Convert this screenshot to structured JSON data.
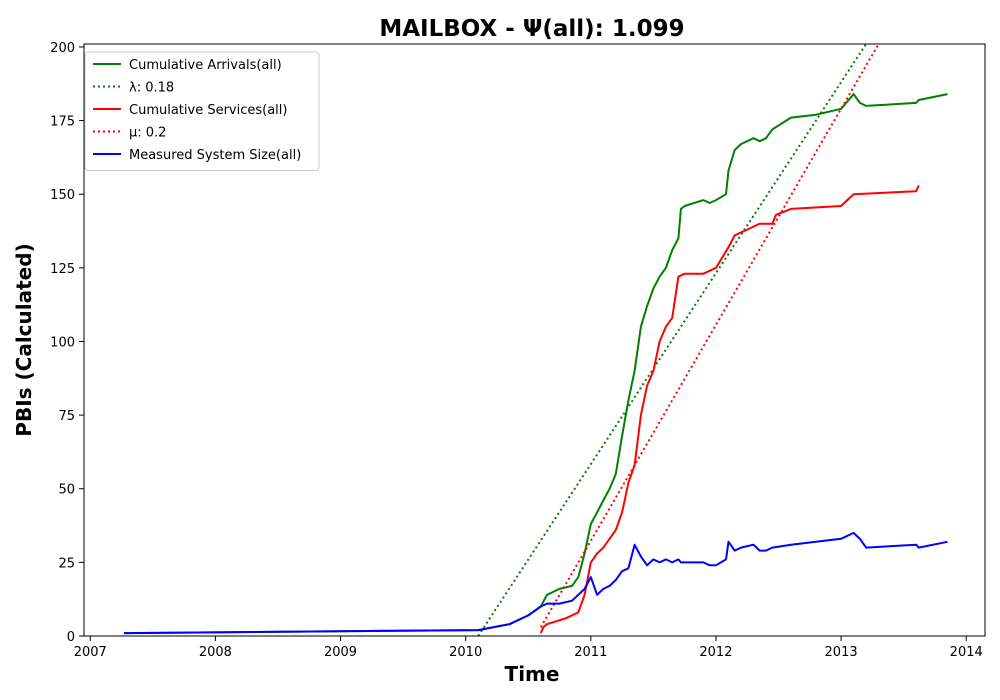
{
  "chart_data": {
    "type": "line",
    "title": "MAILBOX -  Ψ(all): 1.099",
    "xlabel": "Time",
    "ylabel": "PBIs (Calculated)",
    "xlim": [
      2006.95,
      2014.15
    ],
    "ylim": [
      0,
      201
    ],
    "x_ticks": [
      2007,
      2008,
      2009,
      2010,
      2011,
      2012,
      2013,
      2014
    ],
    "y_ticks": [
      0,
      25,
      50,
      75,
      100,
      125,
      150,
      175,
      200
    ],
    "legend_position": "upper-left",
    "series": [
      {
        "name": "Cumulative Arrivals(all)",
        "color": "#008000",
        "style": "solid",
        "x": [
          2007.27,
          2010.1,
          2010.35,
          2010.5,
          2010.6,
          2010.65,
          2010.75,
          2010.85,
          2010.9,
          2010.95,
          2011.0,
          2011.05,
          2011.1,
          2011.15,
          2011.2,
          2011.25,
          2011.3,
          2011.35,
          2011.4,
          2011.45,
          2011.5,
          2011.55,
          2011.6,
          2011.65,
          2011.7,
          2011.72,
          2011.75,
          2011.9,
          2011.95,
          2012.0,
          2012.08,
          2012.1,
          2012.15,
          2012.2,
          2012.3,
          2012.35,
          2012.4,
          2012.45,
          2012.6,
          2012.8,
          2013.0,
          2013.1,
          2013.15,
          2013.2,
          2013.6,
          2013.62,
          2013.85
        ],
        "y": [
          1,
          2,
          4,
          7,
          10,
          14,
          16,
          17,
          20,
          28,
          38,
          42,
          46,
          50,
          55,
          68,
          80,
          90,
          105,
          112,
          118,
          122,
          125,
          131,
          135,
          145,
          146,
          148,
          147,
          148,
          150,
          158,
          165,
          167,
          169,
          168,
          169,
          172,
          176,
          177,
          179,
          184,
          181,
          180,
          181,
          182,
          184
        ]
      },
      {
        "name": "λ: 0.18",
        "color": "#008000",
        "style": "dotted",
        "x": [
          2010.1,
          2013.2
        ],
        "y": [
          0,
          201
        ]
      },
      {
        "name": "Cumulative Services(all)",
        "color": "#ff0000",
        "style": "solid",
        "x": [
          2010.6,
          2010.62,
          2010.65,
          2010.8,
          2010.9,
          2010.95,
          2011.0,
          2011.05,
          2011.1,
          2011.15,
          2011.2,
          2011.25,
          2011.3,
          2011.35,
          2011.4,
          2011.45,
          2011.5,
          2011.55,
          2011.6,
          2011.65,
          2011.7,
          2011.75,
          2011.9,
          2012.0,
          2012.1,
          2012.15,
          2012.3,
          2012.35,
          2012.45,
          2012.48,
          2012.6,
          2013.0,
          2013.05,
          2013.1,
          2013.6,
          2013.62
        ],
        "y": [
          1,
          3,
          4,
          6,
          8,
          14,
          25,
          28,
          30,
          33,
          36,
          42,
          52,
          58,
          75,
          85,
          90,
          100,
          105,
          108,
          122,
          123,
          123,
          125,
          132,
          136,
          139,
          140,
          140,
          143,
          145,
          146,
          148,
          150,
          151,
          153
        ]
      },
      {
        "name": "μ: 0.2",
        "color": "#ff0000",
        "style": "dotted",
        "x": [
          2010.6,
          2013.3
        ],
        "y": [
          3,
          201
        ]
      },
      {
        "name": "Measured System Size(all)",
        "color": "#0000ff",
        "style": "solid",
        "x": [
          2007.27,
          2010.1,
          2010.35,
          2010.5,
          2010.6,
          2010.65,
          2010.75,
          2010.85,
          2010.9,
          2010.95,
          2011.0,
          2011.05,
          2011.1,
          2011.15,
          2011.2,
          2011.25,
          2011.3,
          2011.35,
          2011.4,
          2011.45,
          2011.5,
          2011.55,
          2011.6,
          2011.65,
          2011.7,
          2011.72,
          2011.75,
          2011.9,
          2011.95,
          2012.0,
          2012.08,
          2012.1,
          2012.15,
          2012.2,
          2012.3,
          2012.35,
          2012.4,
          2012.45,
          2012.6,
          2012.8,
          2013.0,
          2013.1,
          2013.15,
          2013.2,
          2013.6,
          2013.62,
          2013.85
        ],
        "y": [
          1,
          2,
          4,
          7,
          10,
          11,
          11,
          12,
          14,
          16,
          20,
          14,
          16,
          17,
          19,
          22,
          23,
          31,
          27,
          24,
          26,
          25,
          26,
          25,
          26,
          25,
          25,
          25,
          24,
          24,
          26,
          32,
          29,
          30,
          31,
          29,
          29,
          30,
          31,
          32,
          33,
          35,
          33,
          30,
          31,
          30,
          32
        ]
      }
    ],
    "legend": [
      {
        "label": "Cumulative Arrivals(all)",
        "color": "#008000",
        "style": "solid"
      },
      {
        "label": "λ: 0.18",
        "color": "#008000",
        "style": "dotted"
      },
      {
        "label": "Cumulative Services(all)",
        "color": "#ff0000",
        "style": "solid"
      },
      {
        "label": "μ: 0.2",
        "color": "#ff0000",
        "style": "dotted"
      },
      {
        "label": "Measured System Size(all)",
        "color": "#0000ff",
        "style": "solid"
      }
    ]
  }
}
